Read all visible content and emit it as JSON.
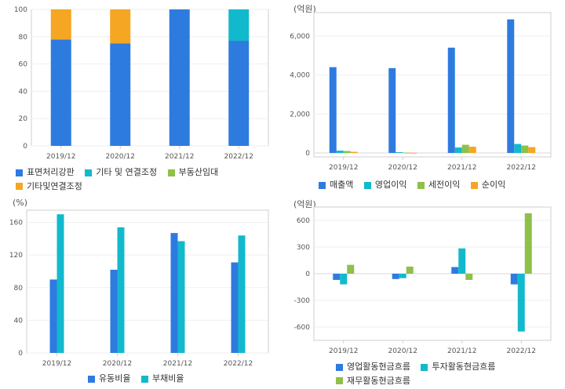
{
  "colors": {
    "blue": "#2e7be0",
    "cyan": "#12b9cc",
    "green": "#8ec04a",
    "orange": "#f5a623",
    "axis": "#cfcfcf",
    "grid": "#efefef"
  },
  "chart_data": [
    {
      "id": "segment-share",
      "type": "bar",
      "stacked": true,
      "unit": "",
      "categories": [
        "2019/12",
        "2020/12",
        "2021/12",
        "2022/12"
      ],
      "ylim": [
        0,
        100
      ],
      "yticks": [
        0,
        20,
        40,
        60,
        80,
        100
      ],
      "series": [
        {
          "name": "표면처리강판",
          "color": "#2e7be0",
          "values": [
            78,
            75,
            100,
            77
          ]
        },
        {
          "name": "기타 및 연결조정",
          "color": "#12b9cc",
          "values": [
            0,
            0,
            0,
            23
          ]
        },
        {
          "name": "부동산임대",
          "color": "#8ec04a",
          "values": [
            0,
            0,
            0,
            0
          ]
        },
        {
          "name": "기타및연결조정",
          "color": "#f5a623",
          "values": [
            22,
            25,
            0,
            0
          ]
        }
      ],
      "grid": true,
      "legend": "bottom"
    },
    {
      "id": "income",
      "type": "bar",
      "stacked": false,
      "unit": "(억원)",
      "categories": [
        "2019/12",
        "2020/12",
        "2021/12",
        "2022/12"
      ],
      "ylim": [
        -200,
        7200
      ],
      "yticks": [
        0,
        2000,
        4000,
        6000
      ],
      "ytick_labels": [
        "0",
        "2,000",
        "4,000",
        "6,000"
      ],
      "series": [
        {
          "name": "매출액",
          "color": "#2e7be0",
          "values": [
            4400,
            4350,
            5400,
            6850
          ]
        },
        {
          "name": "영업이익",
          "color": "#12b9cc",
          "values": [
            120,
            40,
            280,
            460
          ]
        },
        {
          "name": "세전이익",
          "color": "#8ec04a",
          "values": [
            100,
            20,
            420,
            380
          ]
        },
        {
          "name": "순이익",
          "color": "#f5a623",
          "values": [
            60,
            10,
            320,
            300
          ]
        }
      ],
      "grid": true,
      "legend": "bottom"
    },
    {
      "id": "ratios",
      "type": "bar",
      "stacked": false,
      "unit": "(%)",
      "categories": [
        "2019/12",
        "2020/12",
        "2021/12",
        "2022/12"
      ],
      "ylim": [
        0,
        175
      ],
      "yticks": [
        0,
        40,
        80,
        120,
        160
      ],
      "series": [
        {
          "name": "유동비율",
          "color": "#2e7be0",
          "values": [
            90,
            102,
            147,
            111
          ]
        },
        {
          "name": "부채비율",
          "color": "#12b9cc",
          "values": [
            170,
            154,
            137,
            144
          ]
        }
      ],
      "grid": true,
      "legend": "bottom"
    },
    {
      "id": "cashflow",
      "type": "bar",
      "stacked": false,
      "unit": "(억원)",
      "categories": [
        "2019/12",
        "2020/12",
        "2021/12",
        "2022/12"
      ],
      "ylim": [
        -750,
        750
      ],
      "yticks": [
        -600,
        -300,
        0,
        300,
        600
      ],
      "series": [
        {
          "name": "영업활동현금흐름",
          "color": "#2e7be0",
          "values": [
            -70,
            -60,
            75,
            -120
          ]
        },
        {
          "name": "투자활동현금흐름",
          "color": "#12b9cc",
          "values": [
            -120,
            -50,
            285,
            -650
          ]
        },
        {
          "name": "재무활동현금흐름",
          "color": "#8ec04a",
          "values": [
            100,
            80,
            -70,
            680
          ]
        }
      ],
      "grid": true,
      "legend": "bottom"
    }
  ]
}
